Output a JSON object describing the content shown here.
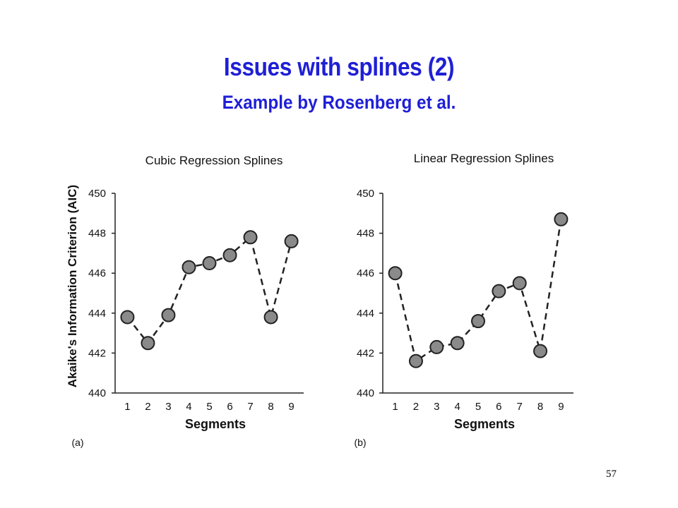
{
  "slide": {
    "title": "Issues with splines (2)",
    "subtitle": "Example by Rosenberg et al.",
    "page_number": "57"
  },
  "colors": {
    "title": "#1f1fd6",
    "marker_fill": "#8a8a8a",
    "marker_stroke": "#222222",
    "axis": "#222222"
  },
  "chart_data": [
    {
      "type": "scatter",
      "panel_label": "(a)",
      "title": "Cubic Regression Splines",
      "xlabel": "Segments",
      "ylabel": "Akaike's Information Criterion (AIC)",
      "x": [
        1,
        2,
        3,
        4,
        5,
        6,
        7,
        8,
        9
      ],
      "y": [
        443.8,
        442.5,
        443.9,
        446.3,
        446.5,
        446.9,
        447.8,
        443.8,
        447.6
      ],
      "xlim": [
        0.4,
        9.6
      ],
      "ylim": [
        440,
        450
      ],
      "yticks": [
        440,
        442,
        444,
        446,
        448,
        450
      ],
      "xticks": [
        1,
        2,
        3,
        4,
        5,
        6,
        7,
        8,
        9
      ],
      "line_style": "dashed",
      "grid": false
    },
    {
      "type": "scatter",
      "panel_label": "(b)",
      "title": "Linear Regression Splines",
      "xlabel": "Segments",
      "ylabel": "",
      "x": [
        1,
        2,
        3,
        4,
        5,
        6,
        7,
        8,
        9
      ],
      "y": [
        446.0,
        441.6,
        442.3,
        442.5,
        443.6,
        445.1,
        445.5,
        442.1,
        448.7
      ],
      "xlim": [
        0.4,
        9.6
      ],
      "ylim": [
        440,
        450
      ],
      "yticks": [
        440,
        442,
        444,
        446,
        448,
        450
      ],
      "xticks": [
        1,
        2,
        3,
        4,
        5,
        6,
        7,
        8,
        9
      ],
      "line_style": "dashed",
      "grid": false
    }
  ]
}
